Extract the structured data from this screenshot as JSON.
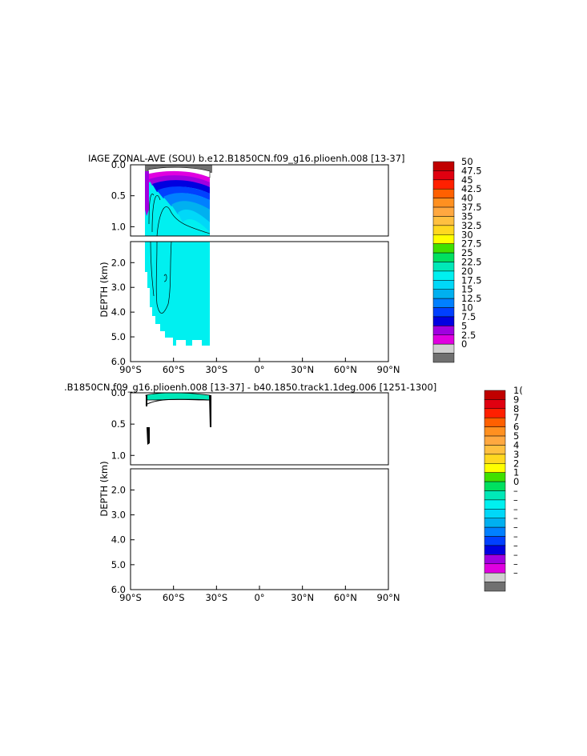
{
  "chart_data": [
    {
      "type": "heatmap",
      "title": "IAGE ZONAL-AVE (SOU) b.e12.B1850CN.f09_g16.plioenh.008 [13-37]",
      "ylabel": "DEPTH (km)",
      "x_ticks": [
        "90°S",
        "60°S",
        "30°S",
        "0°",
        "30°N",
        "60°N",
        "90°N"
      ],
      "x_tick_values": [
        -90,
        -60,
        -30,
        0,
        30,
        60,
        90
      ],
      "upper_panel_y_ticks": [
        "0.0",
        "0.5",
        "1.0"
      ],
      "lower_panel_y_ticks": [
        "2.0",
        "3.0",
        "4.0",
        "5.0",
        "6.0"
      ],
      "xlim": [
        -90,
        90
      ],
      "upper_ylim": [
        1.15,
        0
      ],
      "lower_ylim": [
        6.0,
        1.15
      ],
      "data_extent_lat": [
        -78,
        -33
      ],
      "colorbar_labels": [
        "50",
        "47.5",
        "45",
        "42.5",
        "40",
        "37.5",
        "35",
        "32.5",
        "30",
        "27.5",
        "25",
        "22.5",
        "20",
        "17.5",
        "15",
        "12.5",
        "10",
        "7.5",
        "5",
        "2.5",
        "0"
      ],
      "colorbar_colors": [
        "#c00000",
        "#e00010",
        "#ff2000",
        "#ff6000",
        "#ff9020",
        "#ffa840",
        "#ffc040",
        "#ffd820",
        "#ffff00",
        "#40e000",
        "#00e060",
        "#00e8b8",
        "#00f0f0",
        "#00d8f8",
        "#00b0f0",
        "#0080ff",
        "#0040ff",
        "#0000e0",
        "#a000e0",
        "#e000e0",
        "#d0d0d0",
        "#707070"
      ]
    },
    {
      "type": "heatmap",
      "title": ".B1850CN.f09_g16.plioenh.008 [13-37] - b40.1850.track1.1deg.006 [1251-1300]",
      "ylabel": "DEPTH (km)",
      "x_ticks": [
        "90°S",
        "60°S",
        "30°S",
        "0°",
        "30°N",
        "60°N",
        "90°N"
      ],
      "x_tick_values": [
        -90,
        -60,
        -30,
        0,
        30,
        60,
        90
      ],
      "upper_panel_y_ticks": [
        "0.0",
        "0.5",
        "1.0"
      ],
      "lower_panel_y_ticks": [
        "2.0",
        "3.0",
        "4.0",
        "5.0",
        "6.0"
      ],
      "xlim": [
        -90,
        90
      ],
      "colorbar_labels": [
        "1(",
        "9",
        "8",
        "7",
        "6",
        "5",
        "4",
        "3",
        "2",
        "1",
        "0",
        "–",
        "–",
        "–",
        "–",
        "–",
        "–",
        "–",
        "–",
        "–",
        "–"
      ],
      "colorbar_colors": [
        "#c00000",
        "#e00010",
        "#ff2000",
        "#ff6000",
        "#ff9020",
        "#ffa840",
        "#ffc040",
        "#ffd820",
        "#ffff00",
        "#40e000",
        "#00e060",
        "#00e8b8",
        "#00f0f0",
        "#00d8f8",
        "#00b0f0",
        "#0080ff",
        "#0040ff",
        "#0000e0",
        "#a000e0",
        "#e000e0",
        "#d0d0d0",
        "#707070"
      ]
    }
  ]
}
